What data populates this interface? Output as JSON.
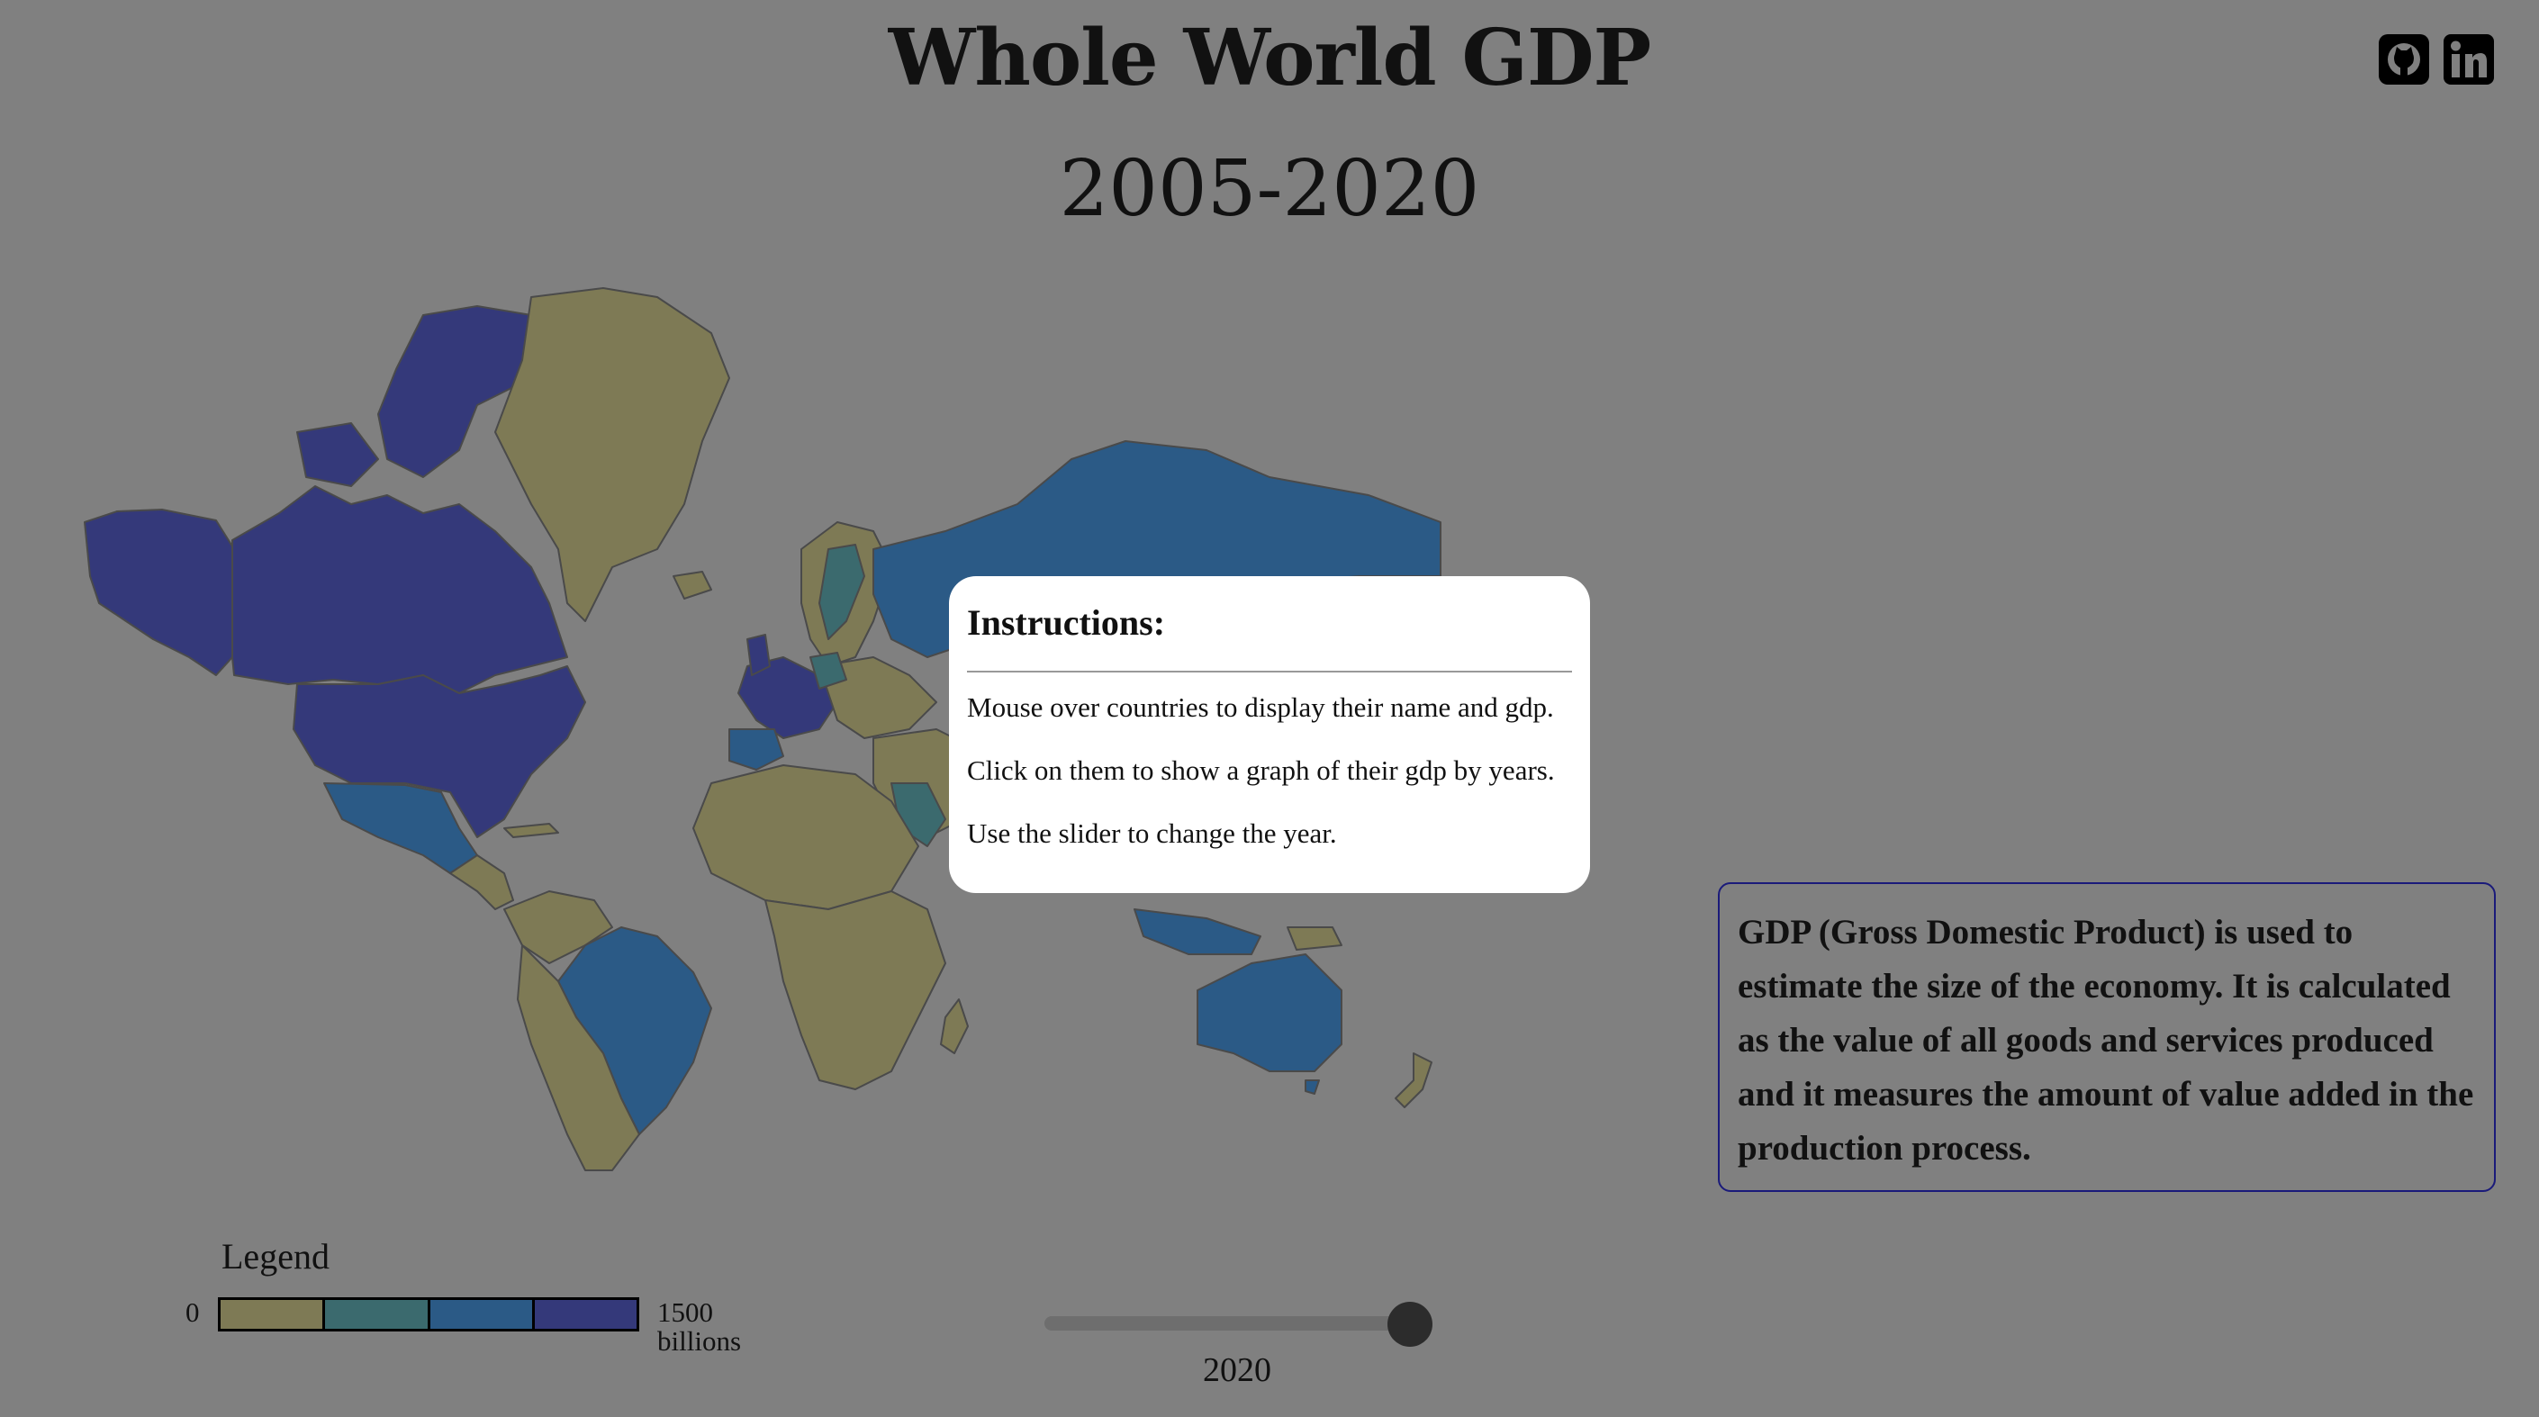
{
  "header": {
    "title": "Whole World GDP",
    "subtitle": "2005-2020"
  },
  "social": {
    "github_icon": "github-icon",
    "linkedin_icon": "linkedin-icon"
  },
  "instructions": {
    "heading": "Instructions:",
    "lines": [
      "Mouse over countries to display their name and gdp.",
      "Click on them to show a graph of their gdp by years.",
      "Use the slider to change the year."
    ]
  },
  "info": {
    "text": "GDP (Gross Domestic Product) is used to estimate the size of the economy. It is calculated as the value of all goods and services produced and it measures the amount of value added in the production process."
  },
  "legend": {
    "title": "Legend",
    "min": "0",
    "max": "1500",
    "unit": "billions",
    "colors": [
      "#7e7a55",
      "#3b6a6e",
      "#2b5a86",
      "#34397a"
    ]
  },
  "slider": {
    "value": "2020",
    "min_year": 2005,
    "max_year": 2020,
    "current_year": 2020
  },
  "map": {
    "colors": {
      "low": "#7e7a55",
      "mid_low": "#3b6a6e",
      "mid_high": "#2b5a86",
      "high": "#34397a",
      "border": "#4a4a4a"
    }
  }
}
